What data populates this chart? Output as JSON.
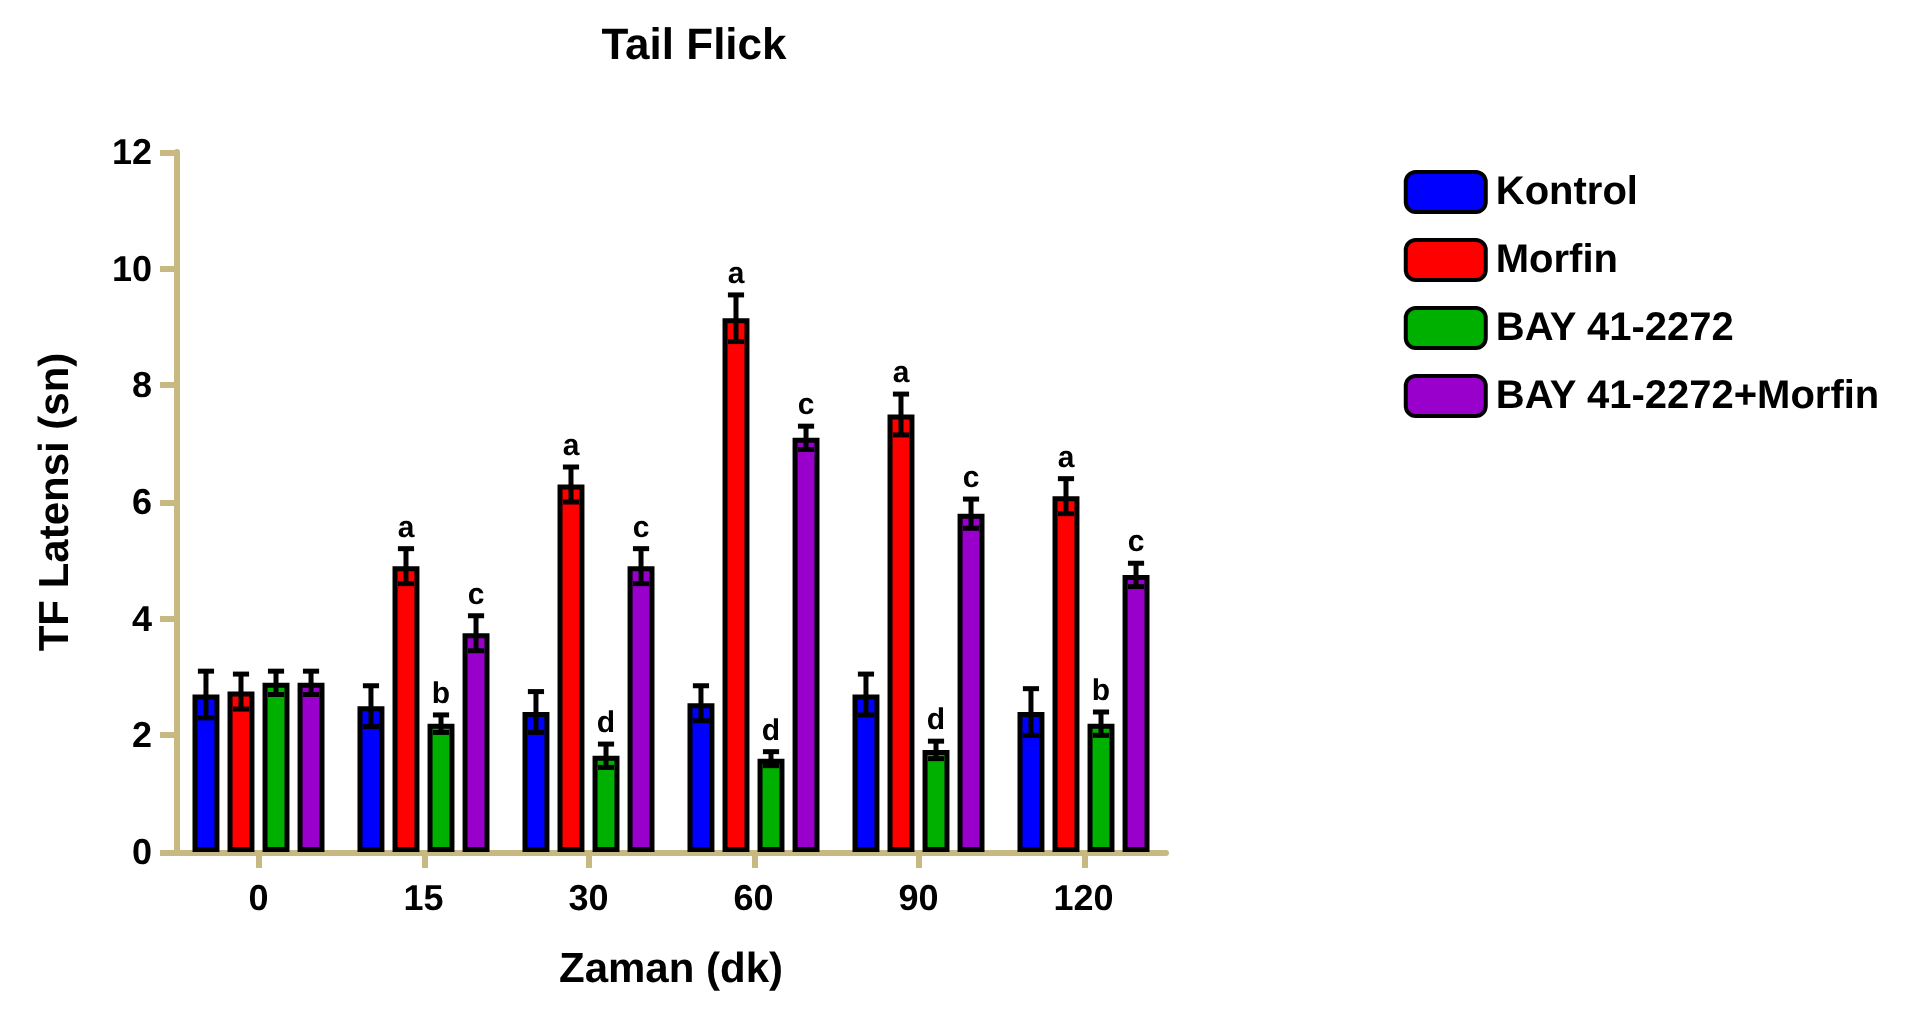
{
  "chart_data": {
    "type": "bar",
    "title": "Tail Flick",
    "xlabel": "Zaman (dk)",
    "ylabel": "TF Latensi (sn)",
    "categories": [
      "0",
      "15",
      "30",
      "60",
      "90",
      "120"
    ],
    "series": [
      {
        "name": "Kontrol",
        "color": "#0000ff",
        "values": [
          2.7,
          2.5,
          2.4,
          2.55,
          2.7,
          2.4
        ],
        "errors": [
          0.4,
          0.35,
          0.35,
          0.3,
          0.35,
          0.4
        ]
      },
      {
        "name": "Morfin",
        "color": "#ff0000",
        "values": [
          2.75,
          4.9,
          6.3,
          9.15,
          7.5,
          6.1
        ],
        "errors": [
          0.3,
          0.3,
          0.3,
          0.4,
          0.35,
          0.3
        ],
        "value_labels": [
          null,
          "a",
          "a",
          "a",
          "a",
          "a"
        ]
      },
      {
        "name": "BAY 41-2272",
        "color": "#00b000",
        "values": [
          2.9,
          2.2,
          1.65,
          1.6,
          1.75,
          2.2
        ],
        "errors": [
          0.2,
          0.15,
          0.2,
          0.12,
          0.15,
          0.2
        ],
        "value_labels": [
          null,
          "b",
          "d",
          "d",
          "d",
          "b"
        ]
      },
      {
        "name": "BAY 41-2272+Morfin",
        "color": "#9900cc",
        "values": [
          2.9,
          3.75,
          4.9,
          7.1,
          5.8,
          4.75
        ],
        "errors": [
          0.2,
          0.3,
          0.3,
          0.2,
          0.25,
          0.2
        ],
        "value_labels": [
          null,
          "c",
          "c",
          "c",
          "c",
          "c"
        ]
      }
    ],
    "ylim": [
      0,
      12
    ],
    "yticks": [
      0,
      2,
      4,
      6,
      8,
      10,
      12
    ],
    "grid": false,
    "legend": "right"
  }
}
